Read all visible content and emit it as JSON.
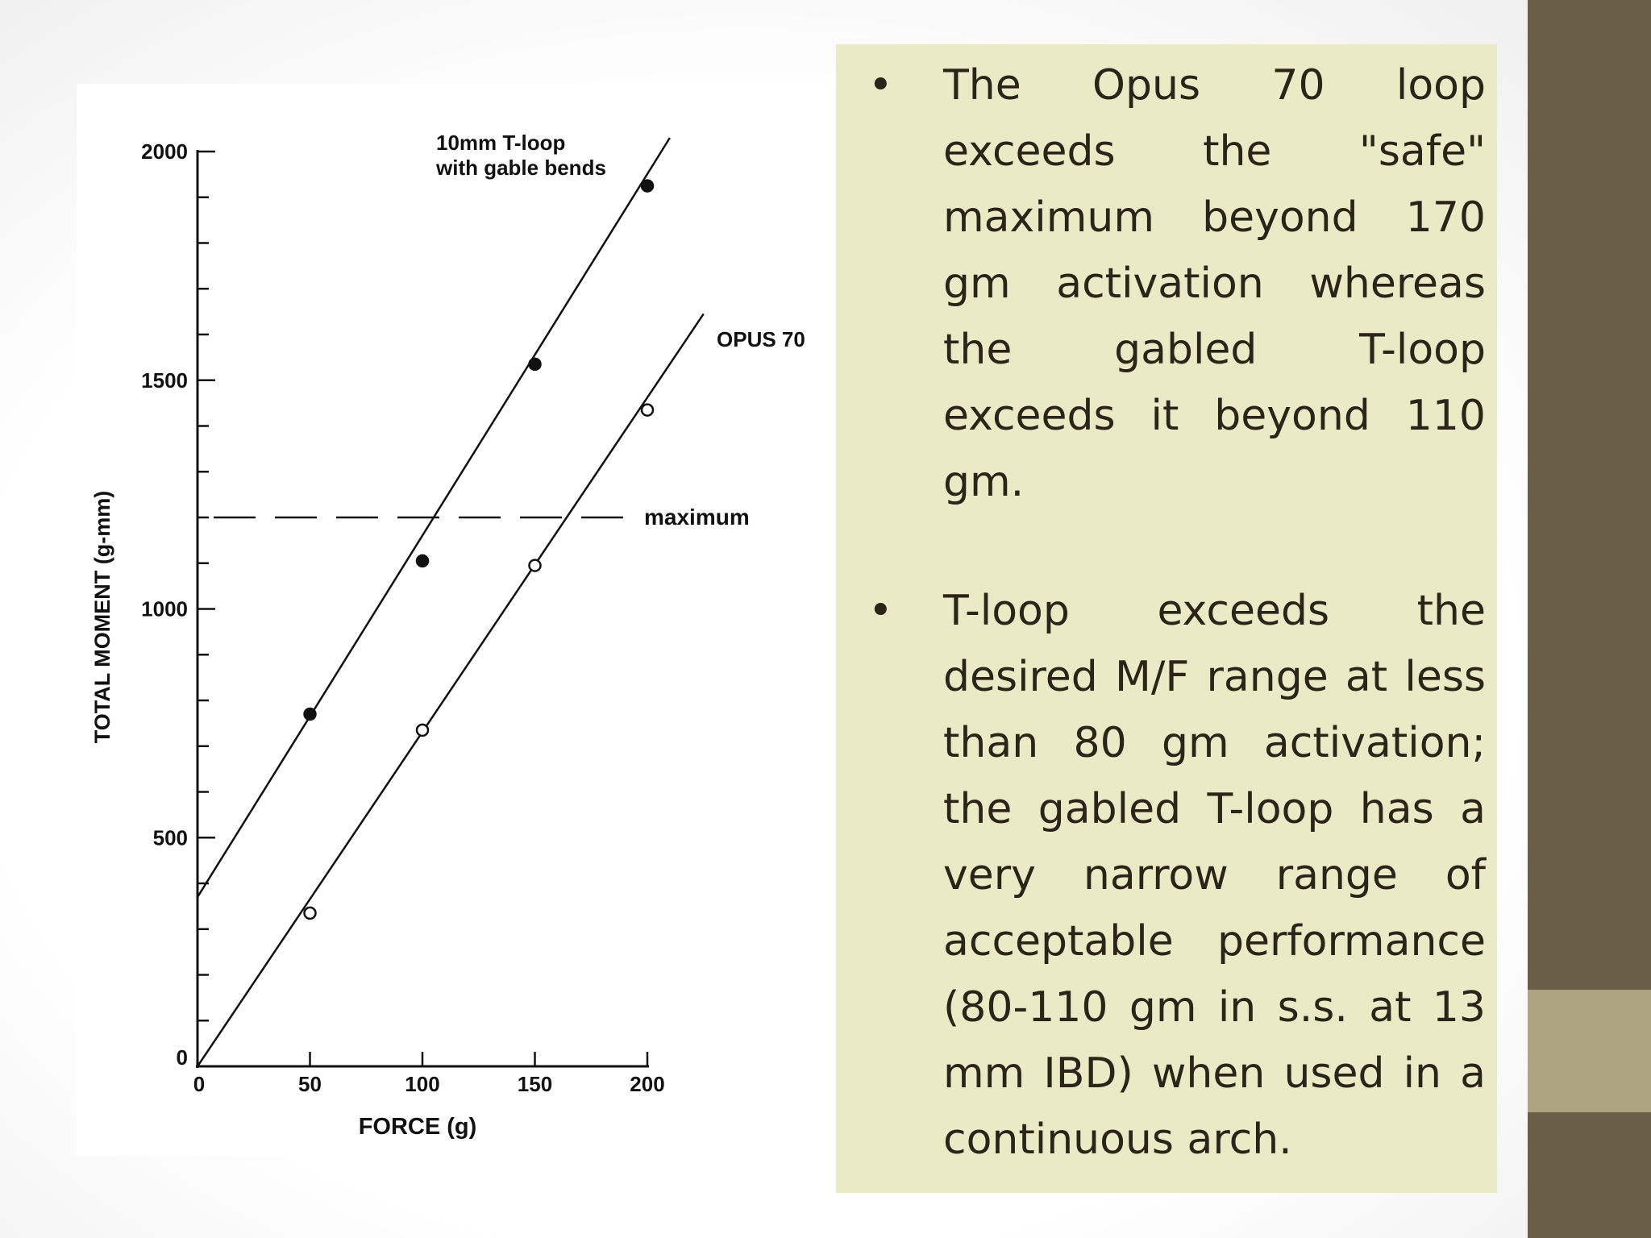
{
  "chart_data": {
    "type": "scatter",
    "xlabel": "FORCE (g)",
    "ylabel": "TOTAL MOMENT (g-mm)",
    "xlim": [
      0,
      200
    ],
    "ylim": [
      0,
      2000
    ],
    "x_ticks": [
      "0",
      "50",
      "100",
      "150",
      "200"
    ],
    "y_ticks": [
      "0",
      "500",
      "1000",
      "1500",
      "2000"
    ],
    "grid": false,
    "series": [
      {
        "name": "10mm T-loop with gable bends",
        "label_lines": [
          "10mm T-loop",
          "with gable bends"
        ],
        "marker": "filled-circle",
        "x": [
          50,
          100,
          150,
          200
        ],
        "y": [
          770,
          1105,
          1535,
          1925
        ],
        "fit": {
          "x": [
            0,
            210
          ],
          "y": [
            370,
            2030
          ]
        }
      },
      {
        "name": "OPUS 70",
        "marker": "open-circle",
        "x": [
          50,
          100,
          150,
          200
        ],
        "y": [
          335,
          735,
          1095,
          1435
        ],
        "fit": {
          "x": [
            0,
            225
          ],
          "y": [
            0,
            1645
          ]
        }
      }
    ],
    "annotations": [
      {
        "text": "maximum",
        "y": 1200,
        "style": "dashed-horizontal-line"
      }
    ]
  },
  "bullets": [
    "The Opus 70 loop exceeds the \"safe\" maximum beyond 170 gm activation whereas the gabled T-loop exceeds it beyond 110 gm.",
    "T-loop exceeds the desired M/F range at less than 80 gm activation; the gabled T-loop has a very narrow range of acceptable performance (80-110 gm in s.s. at 13 mm IBD) when used in a continuous arch."
  ],
  "bullet_symbol": "•",
  "colors": {
    "side_bar": "#6b5e47",
    "side_bar_accent": "#aea480",
    "text_panel": "#eaeac6",
    "text": "#2a2419"
  }
}
